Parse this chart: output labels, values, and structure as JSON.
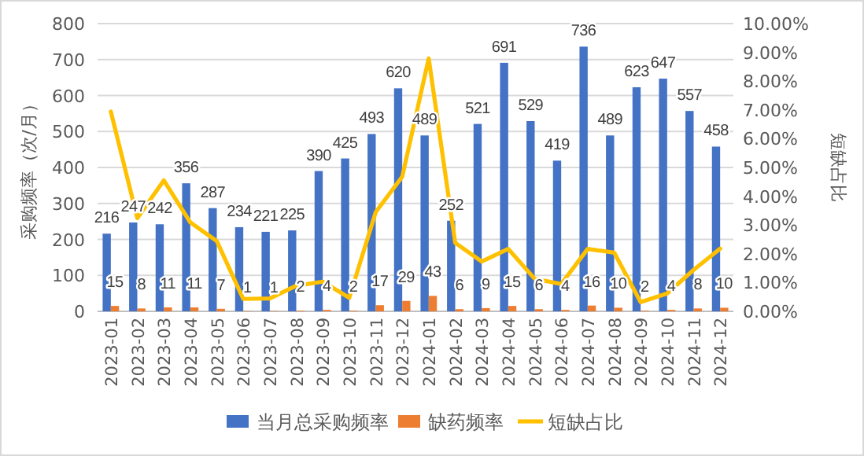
{
  "chart_data": {
    "type": "bar",
    "categories": [
      "2023-01",
      "2023-02",
      "2023-03",
      "2023-04",
      "2023-05",
      "2023-06",
      "2023-07",
      "2023-08",
      "2023-09",
      "2023-10",
      "2023-11",
      "2023-12",
      "2024-01",
      "2024-02",
      "2024-03",
      "2024-04",
      "2024-05",
      "2024-06",
      "2024-07",
      "2024-08",
      "2024-09",
      "2024-10",
      "2024-11",
      "2024-12"
    ],
    "ylabel": "采购频率（次/月）",
    "y2label": "短缺占比",
    "ylim": [
      0,
      800
    ],
    "yticks": [
      0,
      100,
      200,
      300,
      400,
      500,
      600,
      700,
      800
    ],
    "y2lim": [
      0,
      10
    ],
    "y2ticks": [
      {
        "value": 0,
        "label": "0.00%"
      },
      {
        "value": 1,
        "label": "1.00%"
      },
      {
        "value": 2,
        "label": "2.00%"
      },
      {
        "value": 3,
        "label": "3.00%"
      },
      {
        "value": 4,
        "label": "4.00%"
      },
      {
        "value": 5,
        "label": "5.00%"
      },
      {
        "value": 6,
        "label": "6.00%"
      },
      {
        "value": 7,
        "label": "7.00%"
      },
      {
        "value": 8,
        "label": "8.00%"
      },
      {
        "value": 9,
        "label": "9.00%"
      },
      {
        "value": 10,
        "label": "10.00%"
      }
    ],
    "grid": "y",
    "legend": "bottom",
    "series": [
      {
        "name": "当月总采购频率",
        "color": "#4472c4",
        "values": [
          216,
          247,
          242,
          356,
          287,
          234,
          221,
          225,
          390,
          425,
          493,
          620,
          489,
          252,
          521,
          691,
          529,
          419,
          736,
          489,
          623,
          647,
          557,
          458
        ],
        "value_labels": [
          "216",
          "247",
          "242",
          "356",
          "287",
          "234",
          "221",
          "225",
          "390",
          "425",
          "493",
          "620",
          "489",
          "252",
          "521",
          "691",
          "529",
          "419",
          "736",
          "489",
          "623",
          "647",
          "557",
          "458"
        ]
      },
      {
        "name": "缺药频率",
        "color": "#ed7d31",
        "values": [
          15,
          8,
          11,
          11,
          7,
          1,
          1,
          2,
          4,
          2,
          17,
          29,
          43,
          6,
          9,
          15,
          6,
          4,
          16,
          10,
          2,
          4,
          8,
          10
        ],
        "value_labels": [
          "15",
          "8",
          "11",
          "11",
          "7",
          "1",
          "1",
          "2",
          "4",
          "2",
          "17",
          "29",
          "43",
          "6",
          "9",
          "15",
          "6",
          "4",
          "16",
          "10",
          "2",
          "4",
          "8",
          "10"
        ]
      },
      {
        "name": "短缺占比",
        "type": "line",
        "axis": "y2",
        "color": "#ffc000",
        "marker": "none",
        "values": [
          6.94,
          3.24,
          4.55,
          3.09,
          2.44,
          0.43,
          0.45,
          0.89,
          1.03,
          0.47,
          3.45,
          4.68,
          8.79,
          2.38,
          1.73,
          2.17,
          1.13,
          0.95,
          2.17,
          2.04,
          0.32,
          0.62,
          1.44,
          2.18
        ]
      }
    ]
  }
}
